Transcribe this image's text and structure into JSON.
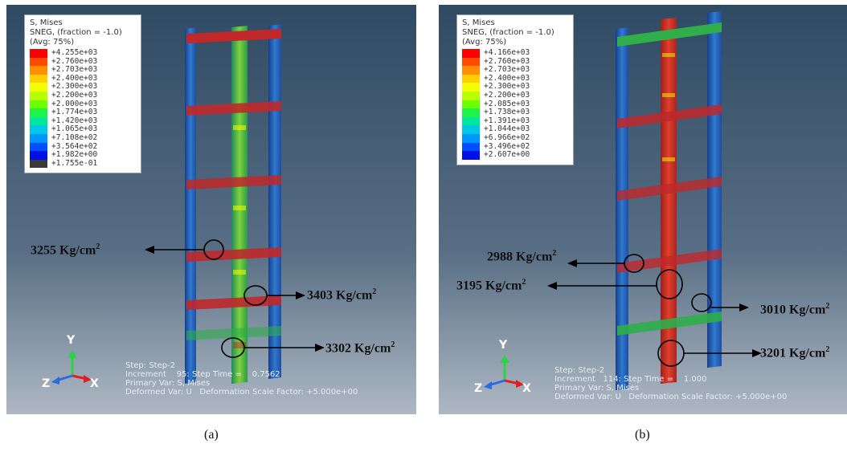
{
  "panels": [
    {
      "id": "a",
      "legend": {
        "title_lines": [
          "S, Mises",
          "SNEG, (fraction = -1.0)",
          "(Avg: 75%)"
        ],
        "ticks": [
          "+4.255e+03",
          "+2.760e+03",
          "+2.703e+03",
          "+2.400e+03",
          "+2.300e+03",
          "+2.200e+03",
          "+2.000e+03",
          "+1.774e+03",
          "+1.420e+03",
          "+1.065e+03",
          "+7.108e+02",
          "+3.564e+02",
          "+1.982e+00",
          "+1.755e-01"
        ],
        "colors": [
          "#ff0000",
          "#ff4a00",
          "#ff8f00",
          "#ffcf00",
          "#f2ff00",
          "#b8ff00",
          "#6cff00",
          "#1ff24a",
          "#00e69a",
          "#00c8e6",
          "#0096ff",
          "#0050ff",
          "#0010e6",
          "#3a3a3a"
        ]
      },
      "step_lines": [
        "Step: Step-2",
        "Increment    95: Step Time =    0.7562",
        "Primary Var: S, Mises",
        "Deformed Var: U   Deformation Scale Factor: +5.000e+00"
      ],
      "callouts": [
        {
          "value": "3255 Kg/cm",
          "sup": "2"
        },
        {
          "value": "3403 Kg/cm",
          "sup": "2"
        },
        {
          "value": "3302 Kg/cm",
          "sup": "2"
        }
      ],
      "caption": "(a)"
    },
    {
      "id": "b",
      "legend": {
        "title_lines": [
          "S, Mises",
          "SNEG, (fraction = -1.0)",
          "(Avg: 75%)"
        ],
        "ticks": [
          "+4.166e+03",
          "+2.760e+03",
          "+2.703e+03",
          "+2.400e+03",
          "+2.300e+03",
          "+2.200e+03",
          "+2.085e+03",
          "+1.738e+03",
          "+1.391e+03",
          "+1.044e+03",
          "+6.966e+02",
          "+3.496e+02",
          "+2.607e+00"
        ],
        "colors": [
          "#ff0000",
          "#ff4a00",
          "#ff8f00",
          "#ffcf00",
          "#f2ff00",
          "#b8ff00",
          "#6cff00",
          "#1ff24a",
          "#00e69a",
          "#00c8e6",
          "#0096ff",
          "#0050ff",
          "#0010e6"
        ]
      },
      "step_lines": [
        "Step: Step-2",
        "Increment   114: Step Time =    1.000",
        "Primary Var: S, Mises",
        "Deformed Var: U   Deformation Scale Factor: +5.000e+00"
      ],
      "callouts": [
        {
          "value": "2988 Kg/cm",
          "sup": "2"
        },
        {
          "value": "3195 Kg/cm",
          "sup": "2"
        },
        {
          "value": "3010 Kg/cm",
          "sup": "2"
        },
        {
          "value": "3201 Kg/cm",
          "sup": "2"
        }
      ],
      "caption": "(b)"
    }
  ],
  "triad": {
    "x": "X",
    "y": "Y",
    "z": "Z"
  },
  "colors": {
    "viewport_top": "#2f4a63",
    "viewport_bottom": "#aeb8c3",
    "frame_blue": "#1f5fb8",
    "frame_green": "#2fae4a",
    "frame_red": "#c0282a"
  }
}
